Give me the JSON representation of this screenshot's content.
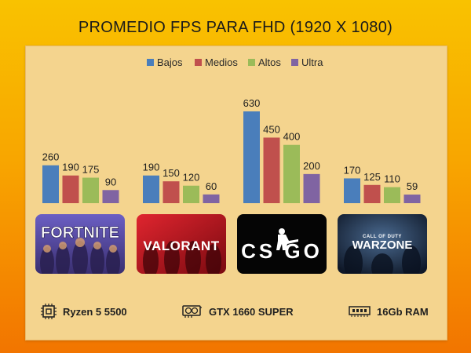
{
  "chart_data": {
    "type": "bar",
    "title": "PROMEDIO FPS PARA FHD (1920 X 1080)",
    "categories": [
      "Fortnite",
      "Valorant",
      "CS:GO",
      "Warzone"
    ],
    "series": [
      {
        "name": "Bajos",
        "color": "#4a7ebb",
        "values": [
          260,
          190,
          630,
          170
        ]
      },
      {
        "name": "Medios",
        "color": "#c0504d",
        "values": [
          190,
          150,
          450,
          125
        ]
      },
      {
        "name": "Altos",
        "color": "#9bbb59",
        "values": [
          175,
          120,
          400,
          110
        ]
      },
      {
        "name": "Ultra",
        "color": "#8064a2",
        "values": [
          90,
          60,
          200,
          59
        ]
      }
    ],
    "legend_position": "top-center",
    "ylim": [
      0,
      630
    ],
    "grid": false
  },
  "thumbnails": [
    {
      "game": "Fortnite",
      "logo_text": "FORTNITE",
      "bg": "#4a3b8c"
    },
    {
      "game": "Valorant",
      "logo_text": "VALORANT",
      "bg": "#b5121b"
    },
    {
      "game": "CS:GO",
      "logo_text": "CS GO",
      "bg": "#000000"
    },
    {
      "game": "Warzone",
      "logo_text": "WARZONE",
      "pre_text": "CALL OF DUTY",
      "bg": "#1d2a44"
    }
  ],
  "specs": {
    "cpu": {
      "label": "Ryzen 5 5500",
      "icon": "cpu-icon"
    },
    "gpu": {
      "label": "GTX 1660 SUPER",
      "icon": "gpu-icon"
    },
    "ram": {
      "label": "16Gb RAM",
      "icon": "ram-icon"
    }
  }
}
